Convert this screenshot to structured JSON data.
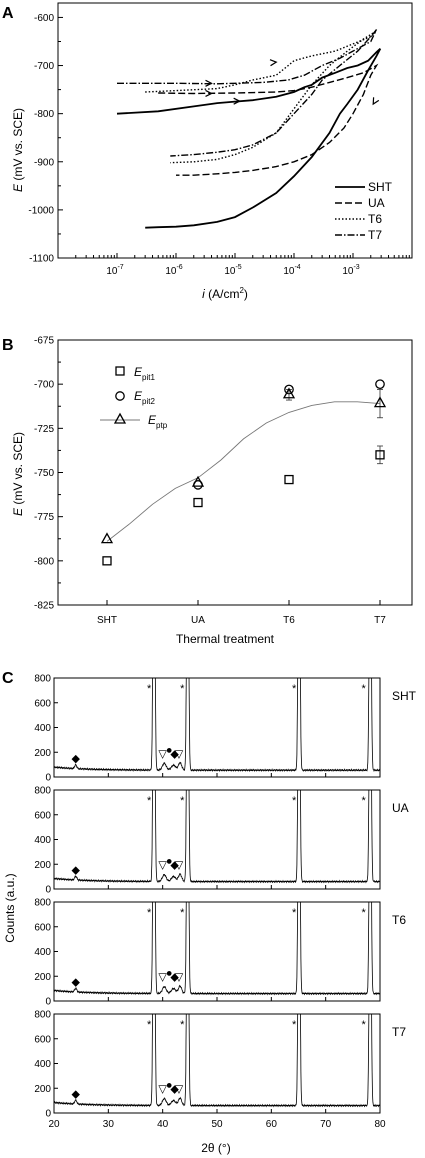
{
  "chart_data": [
    {
      "panel": "A",
      "type": "line",
      "xscale": "log",
      "xlabel_symbol": "i",
      "xlabel_unit": "(A/cm",
      "xlabel_exp": "2",
      "xlabel_close": ")",
      "ylabel_symbol": "E",
      "ylabel_unit": "(mV vs. SCE)",
      "xlim": [
        1e-08,
        0.01
      ],
      "ylim": [
        -1100,
        -570
      ],
      "yticks": [
        -1100,
        -1000,
        -900,
        -800,
        -700,
        -600
      ],
      "xticks": [
        {
          "mant": "10",
          "exp": "-7",
          "value": 1e-07
        },
        {
          "mant": "10",
          "exp": "-6",
          "value": 1e-06
        },
        {
          "mant": "10",
          "exp": "-5",
          "value": 1e-05
        },
        {
          "mant": "10",
          "exp": "-4",
          "value": 0.0001
        },
        {
          "mant": "10",
          "exp": "-3",
          "value": 0.001
        }
      ],
      "legend_position": "bottom-right",
      "series": [
        {
          "name": "SHT",
          "dash": "solid",
          "forward": [
            [
              1e-07,
              -800
            ],
            [
              5e-07,
              -795
            ],
            [
              2e-06,
              -785
            ],
            [
              5e-06,
              -778
            ],
            [
              1e-05,
              -775
            ],
            [
              2e-05,
              -772
            ],
            [
              5e-05,
              -765
            ],
            [
              0.0001,
              -755
            ],
            [
              0.00015,
              -745
            ],
            [
              0.0002,
              -740
            ],
            [
              0.0003,
              -725
            ],
            [
              0.0005,
              -715
            ],
            [
              0.0008,
              -705
            ],
            [
              0.0012,
              -700
            ],
            [
              0.0018,
              -690
            ],
            [
              0.0025,
              -672
            ],
            [
              0.0029,
              -665
            ]
          ],
          "reverse": [
            [
              0.0029,
              -665
            ],
            [
              0.0025,
              -680
            ],
            [
              0.0018,
              -710
            ],
            [
              0.0012,
              -750
            ],
            [
              0.0008,
              -780
            ],
            [
              0.0006,
              -800
            ],
            [
              0.0004,
              -840
            ],
            [
              0.0002,
              -890
            ],
            [
              0.0001,
              -930
            ],
            [
              5e-05,
              -965
            ],
            [
              2e-05,
              -995
            ],
            [
              1e-05,
              -1015
            ],
            [
              5e-06,
              -1025
            ],
            [
              2e-06,
              -1032
            ],
            [
              1e-06,
              -1035
            ],
            [
              5e-07,
              -1036
            ],
            [
              3e-07,
              -1037
            ]
          ]
        },
        {
          "name": "UA",
          "dash": "dash",
          "forward": [
            [
              5e-07,
              -757
            ],
            [
              2e-06,
              -758
            ],
            [
              1e-05,
              -757
            ],
            [
              5e-05,
              -755
            ],
            [
              0.0001,
              -752
            ],
            [
              0.0002,
              -745
            ],
            [
              0.0004,
              -735
            ],
            [
              0.0008,
              -725
            ],
            [
              0.0015,
              -715
            ],
            [
              0.0025,
              -700
            ]
          ],
          "reverse": [
            [
              0.0025,
              -700
            ],
            [
              0.002,
              -720
            ],
            [
              0.0015,
              -760
            ],
            [
              0.001,
              -800
            ],
            [
              0.0007,
              -830
            ],
            [
              0.0004,
              -860
            ],
            [
              0.0002,
              -885
            ],
            [
              0.0001,
              -900
            ],
            [
              5e-05,
              -910
            ],
            [
              2e-05,
              -918
            ],
            [
              1e-05,
              -922
            ],
            [
              5e-06,
              -925
            ],
            [
              2e-06,
              -928
            ],
            [
              1e-06,
              -928
            ]
          ]
        },
        {
          "name": "T6",
          "dash": "dot",
          "forward": [
            [
              3e-07,
              -755
            ],
            [
              1e-06,
              -752
            ],
            [
              5e-06,
              -748
            ],
            [
              1e-05,
              -740
            ],
            [
              2e-05,
              -730
            ],
            [
              5e-05,
              -720
            ],
            [
              8e-05,
              -700
            ],
            [
              0.0001,
              -690
            ],
            [
              0.0002,
              -680
            ],
            [
              0.0005,
              -670
            ],
            [
              0.001,
              -655
            ],
            [
              0.002,
              -640
            ],
            [
              0.0025,
              -628
            ]
          ],
          "reverse": [
            [
              0.0025,
              -628
            ],
            [
              0.0015,
              -645
            ],
            [
              0.0008,
              -670
            ],
            [
              0.0004,
              -700
            ],
            [
              0.0002,
              -740
            ],
            [
              0.0001,
              -790
            ],
            [
              5e-05,
              -840
            ],
            [
              2e-05,
              -870
            ],
            [
              1e-05,
              -885
            ],
            [
              5e-06,
              -895
            ],
            [
              2e-06,
              -900
            ],
            [
              8e-07,
              -902
            ]
          ]
        },
        {
          "name": "T7",
          "dash": "dashdot",
          "forward": [
            [
              1e-07,
              -737
            ],
            [
              1e-06,
              -737
            ],
            [
              5e-06,
              -738
            ],
            [
              1e-05,
              -737
            ],
            [
              3e-05,
              -735
            ],
            [
              8e-05,
              -730
            ],
            [
              0.00015,
              -720
            ],
            [
              0.0003,
              -700
            ],
            [
              0.0006,
              -685
            ],
            [
              0.001,
              -670
            ],
            [
              0.002,
              -650
            ],
            [
              0.0025,
              -625
            ]
          ],
          "reverse": [
            [
              0.0025,
              -625
            ],
            [
              0.002,
              -640
            ],
            [
              0.0012,
              -670
            ],
            [
              0.0006,
              -700
            ],
            [
              0.0003,
              -730
            ],
            [
              0.0002,
              -760
            ],
            [
              0.0001,
              -800
            ],
            [
              5e-05,
              -840
            ],
            [
              2e-05,
              -865
            ],
            [
              1e-05,
              -875
            ],
            [
              5e-06,
              -880
            ],
            [
              2e-06,
              -885
            ],
            [
              8e-07,
              -888
            ]
          ]
        }
      ]
    },
    {
      "panel": "B",
      "type": "scatter",
      "xlabel": "Thermal treatment",
      "ylabel_symbol": "E",
      "ylabel_unit": "(mV vs. SCE)",
      "categories": [
        "SHT",
        "UA",
        "T6",
        "T7"
      ],
      "ylim": [
        -825,
        -675
      ],
      "yticks": [
        -825,
        -800,
        -775,
        -750,
        -725,
        -700,
        -675
      ],
      "legend_position": "top-left",
      "series": [
        {
          "name_main": "E",
          "name_sub": "pit1",
          "marker": "square",
          "values": [
            -800,
            -767,
            -754,
            -740
          ],
          "errors": [
            0,
            0,
            0,
            5
          ]
        },
        {
          "name_main": "E",
          "name_sub": "pit2",
          "marker": "circle",
          "values": [
            null,
            -757,
            -703,
            -700
          ],
          "errors": [
            0,
            0,
            0,
            0
          ]
        },
        {
          "name_main": "E",
          "name_sub": "ptp",
          "marker": "triangle",
          "values": [
            -788,
            -756,
            -706,
            -711
          ],
          "errors": [
            0,
            0,
            3,
            8
          ]
        }
      ],
      "fit_curve": [
        [
          0,
          -789
        ],
        [
          0.25,
          -779
        ],
        [
          0.5,
          -768
        ],
        [
          0.75,
          -759
        ],
        [
          1,
          -753
        ],
        [
          1.25,
          -743
        ],
        [
          1.5,
          -731
        ],
        [
          1.75,
          -722
        ],
        [
          2,
          -716
        ],
        [
          2.25,
          -712
        ],
        [
          2.5,
          -710
        ],
        [
          2.75,
          -710
        ],
        [
          3,
          -711
        ]
      ]
    },
    {
      "panel": "C",
      "type": "line",
      "xlabel": "2θ (°)",
      "ylabel": "Counts (a.u.)",
      "xlim": [
        20,
        80
      ],
      "xticks": [
        20,
        30,
        40,
        50,
        60,
        70,
        80
      ],
      "ylim": [
        0,
        800
      ],
      "yticks": [
        0,
        200,
        400,
        600,
        800
      ],
      "peaks": [
        {
          "center": 38.4,
          "height": 3000,
          "width": 0.16
        },
        {
          "center": 44.6,
          "height": 3000,
          "width": 0.16
        },
        {
          "center": 65.1,
          "height": 3000,
          "width": 0.16
        },
        {
          "center": 78.2,
          "height": 3000,
          "width": 0.16
        },
        {
          "center": 40.3,
          "height": 55,
          "width": 0.35
        },
        {
          "center": 42.0,
          "height": 40,
          "width": 0.4
        },
        {
          "center": 43.2,
          "height": 60,
          "width": 0.3
        },
        {
          "center": 24.0,
          "height": 30,
          "width": 0.2
        }
      ],
      "markers": {
        "star": "*",
        "triangle": "▽",
        "diamond": "◆",
        "circle": "●"
      },
      "subplots": [
        {
          "label": "SHT",
          "baseline": 55
        },
        {
          "label": "UA",
          "baseline": 60
        },
        {
          "label": "T6",
          "baseline": 60
        },
        {
          "label": "T7",
          "baseline": 60
        }
      ]
    }
  ]
}
